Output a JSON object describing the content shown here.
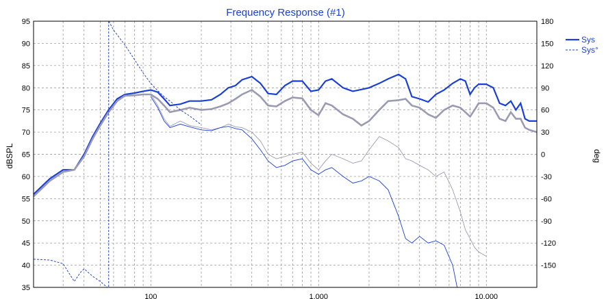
{
  "chart_data": {
    "type": "line",
    "title": "Frequency Response (#1)",
    "ylabel": "dBSPL",
    "y2label": "deg",
    "xscale": "log",
    "xlim": [
      20,
      20000
    ],
    "ylim": [
      35,
      95
    ],
    "y2lim": [
      -180,
      180
    ],
    "x_ticks": [
      100,
      1000,
      10000
    ],
    "x_tick_labels": [
      "100",
      "1,000",
      "10,000"
    ],
    "y_ticks": [
      35,
      40,
      45,
      50,
      55,
      60,
      65,
      70,
      75,
      80,
      85,
      90,
      95
    ],
    "y2_ticks": [
      -150,
      -120,
      -90,
      -60,
      -30,
      0,
      30,
      60,
      90,
      120,
      150,
      180
    ],
    "grid": true,
    "legend_position": "top-right",
    "colors": {
      "sys": "#1a3fd6",
      "phase": "#2a45c8",
      "gray": "#9a9ab4",
      "grid": "#888888"
    },
    "legend": [
      {
        "label": "Sys",
        "style": "solid"
      },
      {
        "label": "Sys°",
        "style": "dashed"
      }
    ],
    "series": [
      {
        "name": "Sys",
        "axis": "left",
        "x": [
          20,
          25,
          30,
          35,
          40,
          45,
          50,
          56,
          63,
          70,
          80,
          90,
          100,
          110,
          120,
          130,
          150,
          170,
          200,
          230,
          260,
          290,
          320,
          350,
          400,
          450,
          500,
          560,
          630,
          700,
          800,
          900,
          1000,
          1100,
          1200,
          1400,
          1600,
          1800,
          2000,
          2300,
          2600,
          3000,
          3300,
          3600,
          4000,
          4500,
          5000,
          5600,
          6300,
          7000,
          7500,
          8000,
          8500,
          9000,
          10000,
          11000,
          12000,
          13000,
          14000,
          15000,
          16000,
          17000,
          18000,
          20000
        ],
        "y": [
          56,
          59.5,
          61.5,
          61.5,
          65,
          69,
          72,
          75,
          77.5,
          78.5,
          78.8,
          79.2,
          79.5,
          79,
          77.5,
          76,
          76.3,
          77,
          77,
          77.3,
          78.5,
          80,
          80.5,
          81.8,
          82.5,
          81,
          78.7,
          78.5,
          80.5,
          81.5,
          81.5,
          79.2,
          79.5,
          81.5,
          82,
          80,
          79.2,
          79.6,
          80,
          81,
          82,
          83,
          82,
          78,
          77.5,
          76.8,
          78.5,
          79.5,
          81,
          82,
          81.5,
          78.5,
          80,
          80.8,
          80.8,
          80,
          76.5,
          76,
          77,
          75,
          76.5,
          73,
          72.5,
          72.5
        ]
      },
      {
        "name": "",
        "axis": "left",
        "x": [
          20,
          25,
          30,
          35,
          40,
          45,
          50,
          56,
          63,
          70,
          80,
          90,
          100,
          110,
          120,
          130,
          150,
          170,
          200,
          230,
          260,
          290,
          320,
          350,
          400,
          450,
          500,
          560,
          630,
          700,
          800,
          900,
          1000,
          1100,
          1200,
          1400,
          1600,
          1800,
          2000,
          2300,
          2600,
          3000,
          3300,
          3600,
          4000,
          4500,
          5000,
          5600,
          6300,
          7000,
          7500,
          8000,
          8500,
          9000,
          10000,
          11000,
          12000,
          13000,
          14000,
          15000,
          16000,
          17000,
          18000,
          20000
        ],
        "y": [
          55.5,
          59,
          61,
          61.5,
          64.5,
          68.5,
          71.5,
          74.5,
          77,
          78.2,
          78.3,
          78.5,
          78.5,
          77.5,
          76,
          74.5,
          75,
          75.5,
          75,
          75.2,
          75.8,
          76.5,
          77.5,
          78.5,
          79.5,
          78,
          76,
          75.8,
          77,
          77.8,
          77.6,
          75,
          73.8,
          76.5,
          76,
          74,
          73,
          71.5,
          72.5,
          75,
          77,
          77.2,
          77.5,
          76,
          75.5,
          74,
          73.2,
          75,
          76,
          75.5,
          74.5,
          73.5,
          75,
          76.5,
          76.5,
          75.5,
          73,
          72.5,
          74.5,
          73,
          73,
          71,
          70.5,
          70
        ]
      },
      {
        "name": "",
        "axis": "left",
        "x": [
          100,
          110,
          120,
          130,
          150,
          170,
          200,
          230,
          260,
          290,
          320,
          350,
          400,
          450,
          500,
          560,
          630,
          700,
          800,
          900,
          1000,
          1100,
          1200,
          1400,
          1600,
          1800,
          2000,
          2300,
          2600,
          3000,
          3300,
          3600,
          4000,
          4500,
          5000,
          5600,
          6300,
          7000,
          7500,
          8000,
          8500,
          9000,
          10000
        ],
        "y": [
          78.5,
          76,
          73,
          71.3,
          72.5,
          71.5,
          71,
          70.5,
          71,
          71.8,
          71.2,
          71,
          70,
          68,
          65,
          64,
          64.5,
          65,
          65.5,
          63,
          61.5,
          63.5,
          65,
          64,
          63,
          63.5,
          66,
          69,
          68,
          66.5,
          64,
          63.5,
          62.5,
          61.5,
          60,
          61,
          57,
          52,
          48,
          46,
          44,
          43,
          42
        ]
      },
      {
        "name": "",
        "axis": "left",
        "x": [
          100,
          110,
          120,
          130,
          150,
          170,
          200,
          230,
          260,
          290,
          320,
          350,
          400,
          450,
          500,
          560,
          630,
          700,
          800,
          900,
          1000,
          1100,
          1200,
          1400,
          1600,
          1800,
          2000,
          2300,
          2600,
          3000,
          3300,
          3600,
          4000,
          4500,
          5000,
          5600,
          6300,
          6700
        ],
        "y": [
          78,
          75.5,
          72.5,
          71,
          71.8,
          71.2,
          70.5,
          70.3,
          71,
          71.3,
          70.8,
          70.5,
          68.5,
          66,
          63.5,
          62,
          62.5,
          63.5,
          64,
          61.5,
          60.5,
          61.5,
          62,
          60,
          58.5,
          59,
          60,
          59,
          57,
          51,
          46,
          45,
          46.5,
          45,
          45.5,
          44.5,
          40,
          35
        ]
      },
      {
        "name": "Sys°",
        "axis": "right",
        "x": [
          20,
          25,
          30,
          35,
          38,
          40,
          45,
          50,
          55,
          56,
          56.2,
          60,
          70,
          80,
          90,
          100,
          110,
          120,
          130,
          140,
          150,
          170,
          200
        ],
        "y": [
          -142,
          -143,
          -148,
          -172,
          -160,
          -155,
          -165,
          -172,
          -180,
          -180,
          180,
          168,
          148,
          128,
          110,
          96,
          86,
          78,
          72,
          66,
          60,
          52,
          40
        ]
      }
    ]
  }
}
